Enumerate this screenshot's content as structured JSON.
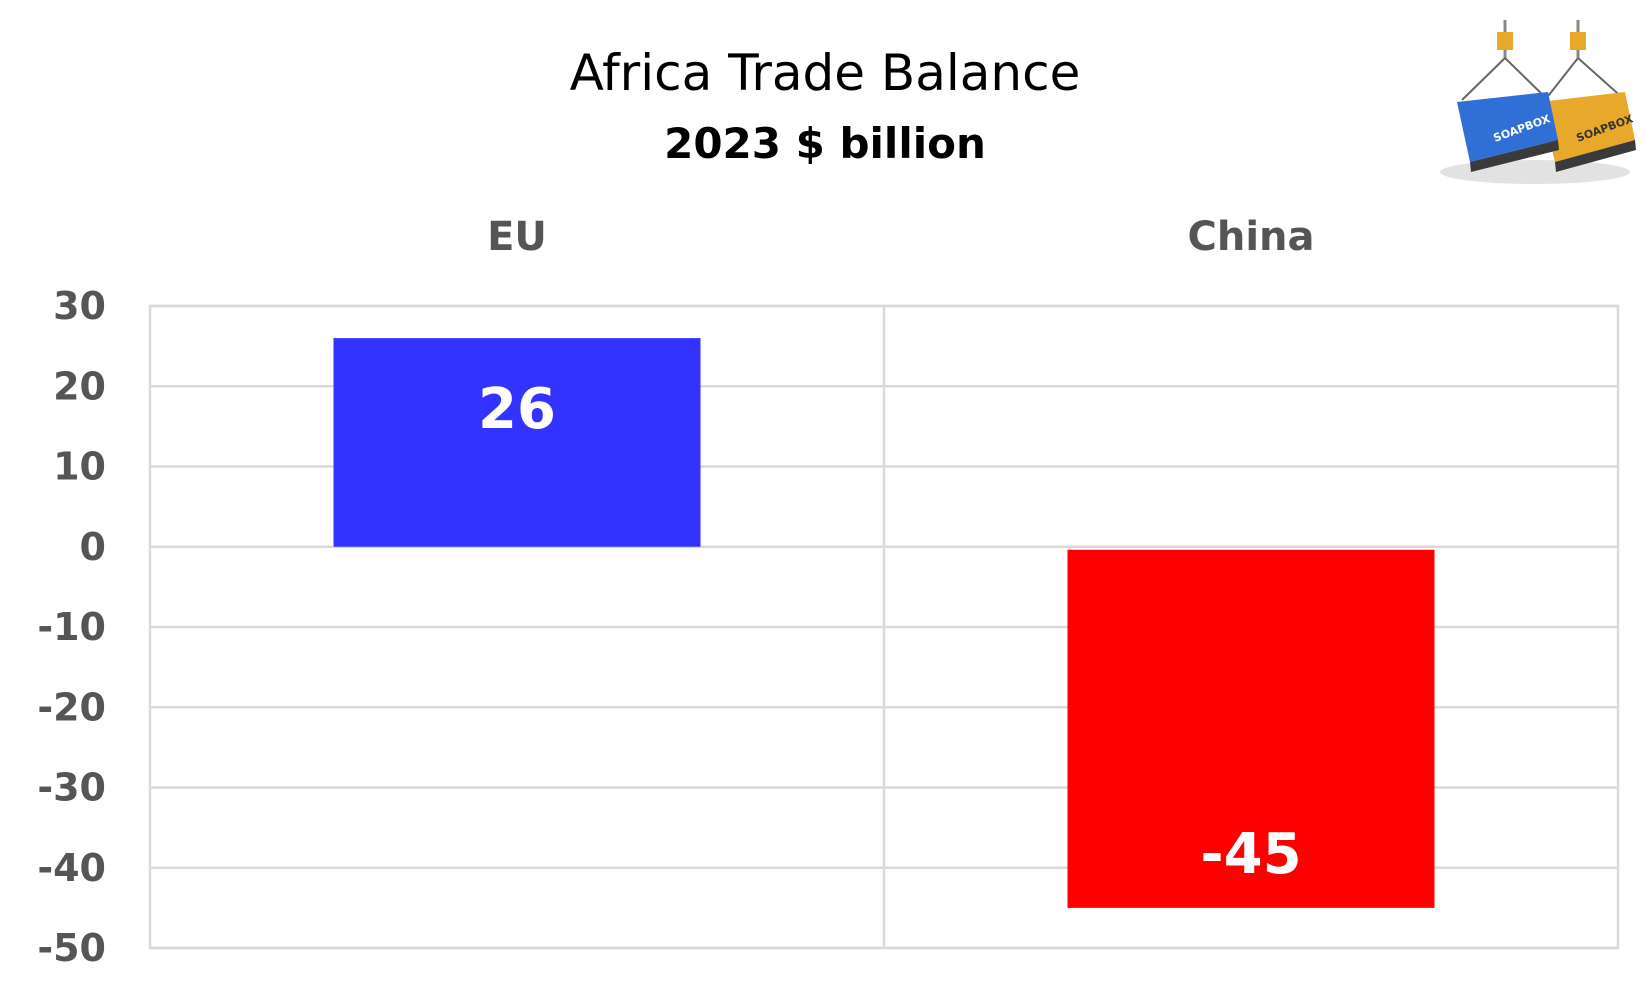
{
  "chart_data": {
    "type": "bar",
    "title": "Africa Trade Balance",
    "subtitle": "2023 $ billion",
    "categories": [
      "EU",
      "China"
    ],
    "values": [
      26,
      -45
    ],
    "colors": [
      "#3333ff",
      "#ff0000"
    ],
    "data_labels": [
      "26",
      "-45"
    ],
    "ylim": [
      -50,
      30
    ],
    "yticks": [
      30,
      20,
      10,
      0,
      -10,
      -20,
      -30,
      -40,
      -50
    ],
    "ytick_labels": [
      "30",
      "20",
      "10",
      "0",
      "-10",
      "-20",
      "-30",
      "-40",
      "-50"
    ],
    "category_labels_position": "top",
    "grid": true,
    "legend": "none"
  },
  "logo": {
    "text": "SOAPBOX",
    "colors": [
      "#2f6fd6",
      "#e8a92a"
    ]
  }
}
